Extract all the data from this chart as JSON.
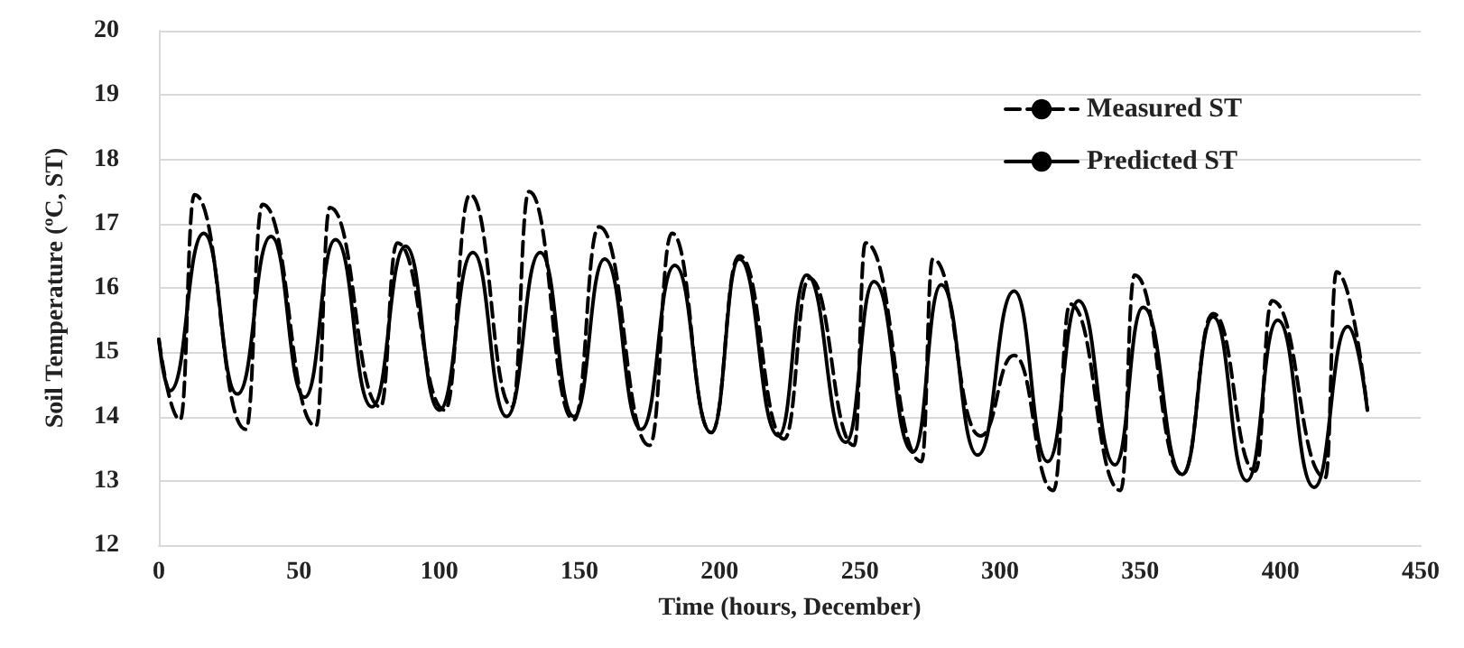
{
  "chart_data": {
    "type": "line",
    "xlabel": "Time (hours, December)",
    "ylabel": "Soil Temperature (ºC, ST)",
    "xlim": [
      0,
      450
    ],
    "xticks": [
      0,
      50,
      100,
      150,
      200,
      250,
      300,
      350,
      400,
      450
    ],
    "ylim": [
      12,
      20
    ],
    "yticks": [
      12,
      13,
      14,
      15,
      16,
      17,
      18,
      19,
      20
    ],
    "grid": "y",
    "legend": "top right",
    "marker": "none",
    "series": [
      {
        "name": "Measured ST",
        "color": "#000000",
        "line_style": "dashed",
        "x": [
          0,
          7.6,
          12.7,
          31,
          37,
          56,
          61,
          79,
          85,
          102,
          111,
          126,
          132,
          148,
          157,
          175,
          183,
          197,
          207,
          223,
          232,
          248,
          252,
          272,
          276,
          293,
          305,
          319,
          325,
          343,
          348,
          365,
          376,
          391,
          397,
          416,
          420,
          431
        ],
        "values": [
          15.2,
          13.95,
          17.45,
          13.8,
          17.3,
          13.85,
          17.25,
          14.15,
          16.7,
          14.1,
          17.45,
          14.15,
          17.5,
          13.95,
          16.95,
          13.55,
          16.85,
          13.75,
          16.5,
          13.65,
          16.15,
          13.55,
          16.7,
          13.3,
          16.45,
          13.7,
          14.95,
          12.85,
          15.75,
          12.85,
          16.2,
          13.1,
          15.6,
          13.15,
          15.8,
          13.05,
          16.25,
          14.1
        ]
      },
      {
        "name": "Predicted ST",
        "color": "#000000",
        "line_style": "solid",
        "x": [
          0,
          4,
          16,
          28,
          40,
          52,
          63,
          76,
          88,
          100,
          112,
          124,
          136,
          148,
          159,
          172,
          184,
          197,
          207,
          221,
          231,
          245,
          255,
          269,
          279,
          292,
          305,
          317,
          328,
          341,
          351,
          365,
          376,
          388,
          399,
          412,
          424,
          431
        ],
        "values": [
          15.2,
          14.4,
          16.85,
          14.35,
          16.8,
          14.3,
          16.75,
          14.15,
          16.65,
          14.1,
          16.55,
          14.0,
          16.55,
          14.0,
          16.45,
          13.8,
          16.35,
          13.75,
          16.45,
          13.7,
          16.2,
          13.6,
          16.1,
          13.45,
          16.05,
          13.4,
          15.95,
          13.3,
          15.8,
          13.25,
          15.7,
          13.1,
          15.55,
          13.0,
          15.5,
          12.9,
          15.4,
          14.1
        ]
      }
    ]
  }
}
